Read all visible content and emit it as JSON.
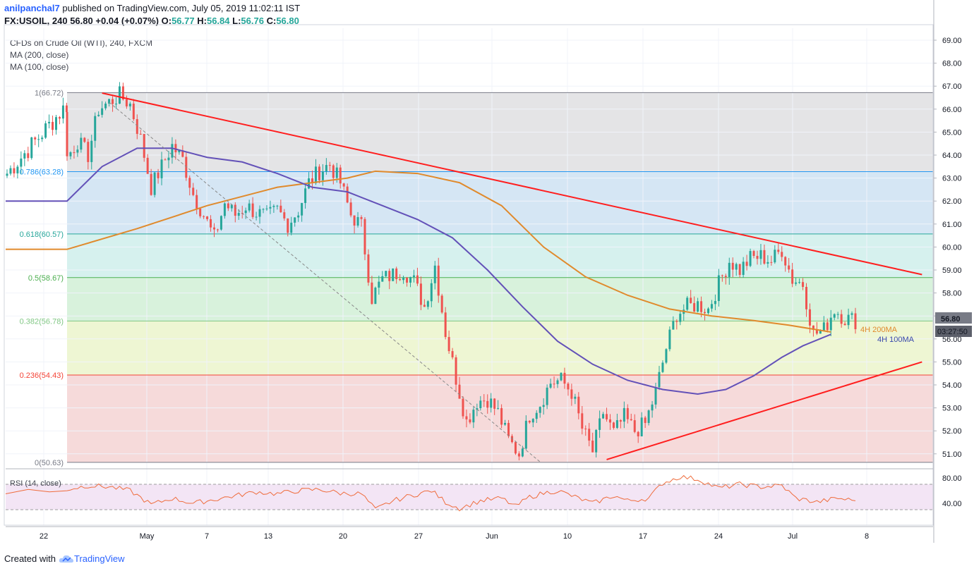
{
  "header": {
    "user": "anilpanchal7",
    "published_text": " published on TradingView.com, July 05, 2019 11:02:11 IST",
    "symbol": "FX:USOIL, 240",
    "last": "56.80",
    "change": "+0.04 (+0.07%)",
    "o_label": "O:",
    "o": "56.77",
    "h_label": "H:",
    "h": "56.84",
    "l_label": "L:",
    "l": "56.76",
    "c_label": "C:",
    "c": "56.80"
  },
  "legend": {
    "title": "CFDs on Crude Oil (WTI), 240, FXCM",
    "ma1": "MA (200, close)",
    "ma2": "MA (100, close)"
  },
  "rsi_label": "RSI (14, close)",
  "footer": {
    "created_with": "Created with",
    "brand": "TradingView"
  },
  "price_badge": "56.80",
  "countdown_badge": "03:27:50",
  "annotations": {
    "ma200": "4H 200MA",
    "ma100": "4H 100MA"
  },
  "colors": {
    "up": "#26a69a",
    "down": "#ef5350",
    "trendline": "#ff1e1e",
    "ma200": "#e08a2c",
    "ma100": "#6351b8",
    "rsi": "#ef6c3c"
  },
  "chart_data": {
    "type": "candlestick",
    "title": "CFDs on Crude Oil (WTI), 240, FXCM",
    "y_axis": {
      "ticks": [
        "69.00",
        "68.00",
        "67.00",
        "66.00",
        "65.00",
        "64.00",
        "63.00",
        "62.00",
        "61.00",
        "60.00",
        "59.00",
        "58.00",
        "57.00",
        "56.00",
        "55.00",
        "54.00",
        "53.00",
        "52.00",
        "51.00"
      ],
      "ylim": [
        50.3,
        69.4
      ]
    },
    "x_axis": {
      "ticks": [
        "22",
        "May",
        "7",
        "13",
        "20",
        "27",
        "Jun",
        "10",
        "17",
        "24",
        "Jul",
        "8"
      ]
    },
    "fibonacci": [
      {
        "label": "1(66.72)",
        "value": 66.72,
        "color": "#787b86"
      },
      {
        "label": "0.786(63.28)",
        "value": 63.28,
        "color": "#2196f3"
      },
      {
        "label": "0.618(60.57)",
        "value": 60.57,
        "color": "#26a69a"
      },
      {
        "label": "0.5(58.67)",
        "value": 58.67,
        "color": "#4caf50"
      },
      {
        "label": "0.382(56.78)",
        "value": 56.78,
        "color": "#81c784"
      },
      {
        "label": "0.236(54.43)",
        "value": 54.43,
        "color": "#f44336"
      },
      {
        "label": "0(50.63)",
        "value": 50.63,
        "color": "#787b86"
      }
    ],
    "fib_zone_colors": [
      "#e4e4e6",
      "#d5e6f4",
      "#d6f1ee",
      "#d8f2dc",
      "#eef6d3",
      "#f6dada"
    ],
    "ohlc_path_points": [
      [
        0,
        63.9
      ],
      [
        3,
        64.6
      ],
      [
        6,
        64.0
      ],
      [
        9,
        66.0
      ],
      [
        12,
        66.3
      ],
      [
        15,
        66.6
      ],
      [
        18,
        66.2
      ],
      [
        21,
        64.7
      ],
      [
        24,
        62.6
      ],
      [
        27,
        63.5
      ],
      [
        30,
        64.4
      ],
      [
        33,
        63.8
      ],
      [
        36,
        62.3
      ],
      [
        39,
        61.4
      ],
      [
        42,
        60.4
      ],
      [
        45,
        61.9
      ],
      [
        48,
        61.4
      ],
      [
        51,
        61.8
      ],
      [
        54,
        61.5
      ],
      [
        57,
        61.3
      ],
      [
        60,
        61.6
      ],
      [
        63,
        61.0
      ],
      [
        66,
        61.6
      ],
      [
        69,
        62.8
      ],
      [
        72,
        63.3
      ],
      [
        75,
        63.6
      ],
      [
        78,
        62.8
      ],
      [
        81,
        61.4
      ],
      [
        84,
        60.9
      ],
      [
        87,
        57.8
      ],
      [
        90,
        58.6
      ],
      [
        93,
        58.8
      ],
      [
        96,
        59.0
      ],
      [
        99,
        58.5
      ],
      [
        102,
        57.4
      ],
      [
        105,
        59.2
      ],
      [
        108,
        56.3
      ],
      [
        111,
        54.3
      ],
      [
        114,
        52.4
      ],
      [
        117,
        53.3
      ],
      [
        120,
        53.4
      ],
      [
        123,
        52.8
      ],
      [
        126,
        51.6
      ],
      [
        129,
        51.0
      ],
      [
        132,
        52.7
      ],
      [
        135,
        53.2
      ],
      [
        138,
        54.1
      ],
      [
        141,
        54.2
      ],
      [
        144,
        53.7
      ],
      [
        147,
        52.1
      ],
      [
        150,
        51.1
      ],
      [
        153,
        52.8
      ],
      [
        156,
        51.9
      ],
      [
        159,
        52.6
      ],
      [
        162,
        52.0
      ],
      [
        165,
        52.3
      ],
      [
        168,
        53.7
      ],
      [
        171,
        55.6
      ],
      [
        174,
        57.1
      ],
      [
        177,
        57.4
      ],
      [
        180,
        57.5
      ],
      [
        183,
        57.3
      ],
      [
        186,
        58.4
      ],
      [
        189,
        59.4
      ],
      [
        192,
        59.0
      ],
      [
        195,
        59.5
      ],
      [
        198,
        59.6
      ],
      [
        201,
        59.4
      ],
      [
        204,
        59.9
      ],
      [
        207,
        58.6
      ],
      [
        210,
        58.4
      ],
      [
        213,
        56.2
      ],
      [
        216,
        56.4
      ],
      [
        219,
        57.3
      ],
      [
        222,
        56.9
      ],
      [
        225,
        56.8
      ]
    ],
    "trendlines": [
      {
        "from": [
          10,
          66.7
        ],
        "to": [
          244,
          58.8
        ],
        "color": "#ff1e1e",
        "label": ""
      },
      {
        "from": [
          154,
          50.75
        ],
        "to": [
          244,
          55.0
        ],
        "color": "#ff1e1e",
        "label": ""
      }
    ],
    "diagonal_dashed": {
      "from": [
        12,
        66.3
      ],
      "to": [
        135,
        50.65
      ]
    },
    "ma200_points": [
      [
        0,
        59.9
      ],
      [
        20,
        60.8
      ],
      [
        40,
        61.8
      ],
      [
        60,
        62.6
      ],
      [
        80,
        63.0
      ],
      [
        88,
        63.3
      ],
      [
        100,
        63.2
      ],
      [
        112,
        62.8
      ],
      [
        124,
        61.8
      ],
      [
        136,
        60.0
      ],
      [
        148,
        58.7
      ],
      [
        160,
        57.9
      ],
      [
        172,
        57.3
      ],
      [
        184,
        57.0
      ],
      [
        196,
        56.8
      ],
      [
        206,
        56.6
      ],
      [
        214,
        56.4
      ],
      [
        218,
        56.3
      ]
    ],
    "ma100_points": [
      [
        0,
        62.0
      ],
      [
        10,
        63.5
      ],
      [
        20,
        64.3
      ],
      [
        30,
        64.3
      ],
      [
        40,
        63.9
      ],
      [
        50,
        63.7
      ],
      [
        60,
        63.2
      ],
      [
        70,
        62.6
      ],
      [
        80,
        62.4
      ],
      [
        90,
        61.8
      ],
      [
        100,
        61.2
      ],
      [
        110,
        60.4
      ],
      [
        120,
        59.0
      ],
      [
        130,
        57.4
      ],
      [
        140,
        55.9
      ],
      [
        150,
        54.9
      ],
      [
        160,
        54.2
      ],
      [
        170,
        53.8
      ],
      [
        180,
        53.6
      ],
      [
        188,
        53.8
      ],
      [
        196,
        54.4
      ],
      [
        204,
        55.2
      ],
      [
        210,
        55.7
      ],
      [
        218,
        56.2
      ]
    ],
    "rsi": {
      "levels": [
        "80.00",
        "40.00"
      ],
      "band": [
        70,
        30
      ],
      "values": [
        [
          0,
          62
        ],
        [
          6,
          68
        ],
        [
          12,
          66
        ],
        [
          18,
          60
        ],
        [
          24,
          38
        ],
        [
          30,
          48
        ],
        [
          36,
          40
        ],
        [
          42,
          46
        ],
        [
          48,
          52
        ],
        [
          54,
          58
        ],
        [
          60,
          55
        ],
        [
          66,
          60
        ],
        [
          72,
          62
        ],
        [
          78,
          56
        ],
        [
          84,
          55
        ],
        [
          88,
          30
        ],
        [
          93,
          44
        ],
        [
          98,
          52
        ],
        [
          104,
          60
        ],
        [
          108,
          42
        ],
        [
          112,
          32
        ],
        [
          118,
          44
        ],
        [
          124,
          48
        ],
        [
          128,
          35
        ],
        [
          132,
          50
        ],
        [
          136,
          56
        ],
        [
          140,
          60
        ],
        [
          146,
          48
        ],
        [
          150,
          40
        ],
        [
          156,
          52
        ],
        [
          160,
          44
        ],
        [
          166,
          48
        ],
        [
          170,
          72
        ],
        [
          175,
          82
        ],
        [
          180,
          78
        ],
        [
          186,
          64
        ],
        [
          192,
          70
        ],
        [
          198,
          66
        ],
        [
          204,
          68
        ],
        [
          208,
          48
        ],
        [
          214,
          42
        ],
        [
          220,
          48
        ],
        [
          225,
          44
        ]
      ]
    }
  }
}
